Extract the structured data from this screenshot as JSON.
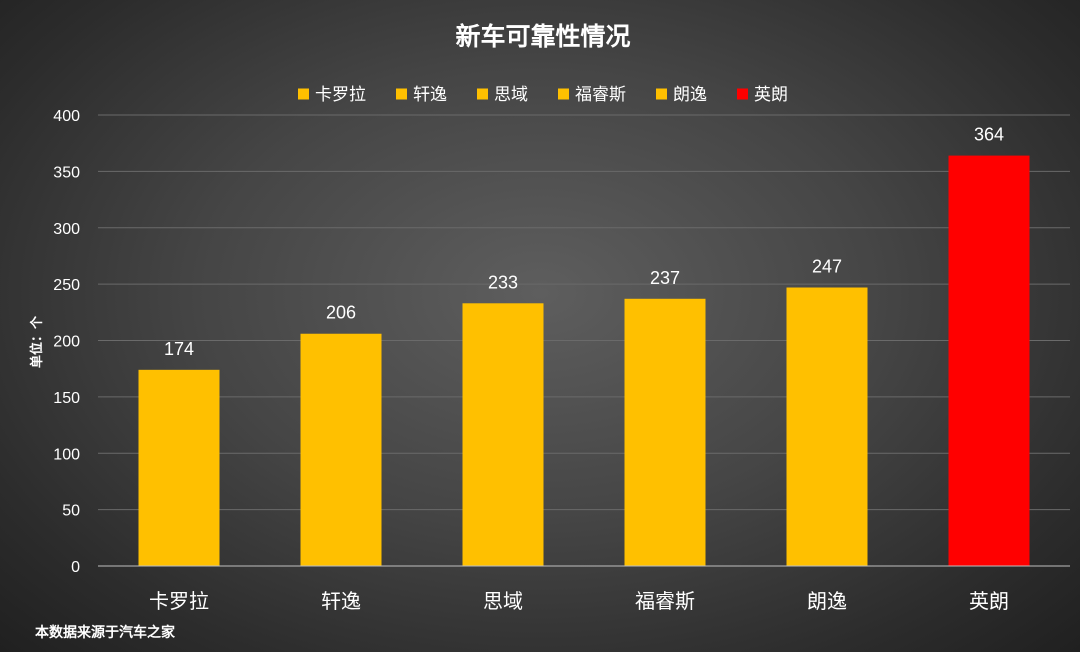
{
  "chart_data": {
    "type": "bar",
    "title": "新车可靠性情况",
    "ylabel": "单位：个",
    "xlabel": "",
    "categories": [
      "卡罗拉",
      "轩逸",
      "思域",
      "福睿斯",
      "朗逸",
      "英朗"
    ],
    "values": [
      174,
      206,
      233,
      237,
      247,
      364
    ],
    "bar_colors": [
      "#FFC000",
      "#FFC000",
      "#FFC000",
      "#FFC000",
      "#FFC000",
      "#FF0000"
    ],
    "data_labels": [
      "174",
      "206",
      "233",
      "237",
      "247",
      "364"
    ],
    "ylim": [
      0,
      400
    ],
    "yticks": [
      0,
      50,
      100,
      150,
      200,
      250,
      300,
      350,
      400
    ],
    "ytick_labels": [
      "0",
      "50",
      "100",
      "150",
      "200",
      "250",
      "300",
      "350",
      "400"
    ],
    "grid": true,
    "legend": {
      "position": "top",
      "entries": [
        {
          "label": "卡罗拉",
          "color": "#FFC000"
        },
        {
          "label": "轩逸",
          "color": "#FFC000"
        },
        {
          "label": "思域",
          "color": "#FFC000"
        },
        {
          "label": "福睿斯",
          "color": "#FFC000"
        },
        {
          "label": "朗逸",
          "color": "#FFC000"
        },
        {
          "label": "英朗",
          "color": "#FF0000"
        }
      ]
    },
    "source_note": "本数据来源于汽车之家"
  }
}
